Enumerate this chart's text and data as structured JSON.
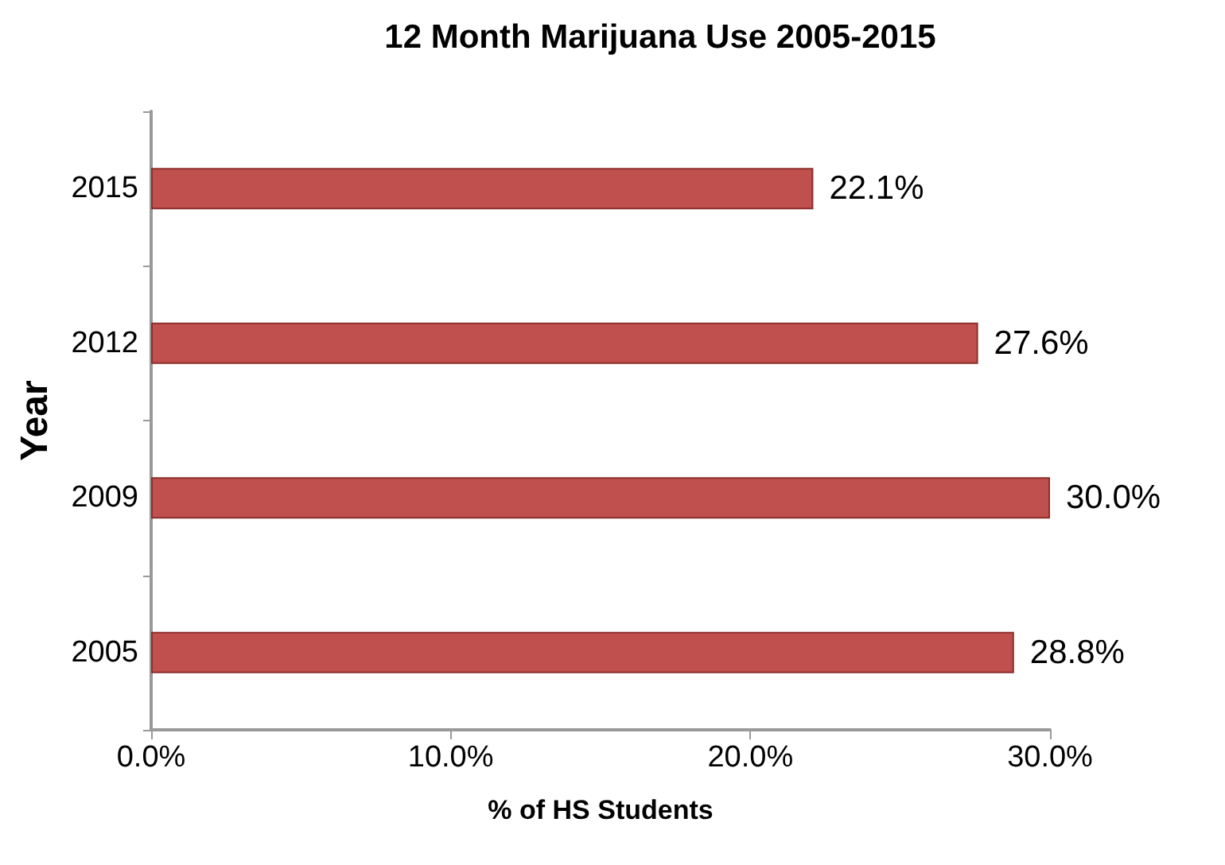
{
  "chart_data": {
    "type": "bar",
    "orientation": "horizontal",
    "title": "12 Month Marijuana Use 2005-2015",
    "xlabel": "% of HS Students",
    "ylabel": "Year",
    "categories": [
      "2015",
      "2012",
      "2009",
      "2005"
    ],
    "values": [
      22.1,
      27.6,
      30.0,
      28.8
    ],
    "value_labels": [
      "22.1%",
      "27.6%",
      "30.0%",
      "28.8%"
    ],
    "color": "#c0504d",
    "xlim": [
      0,
      30
    ],
    "xticks": [
      {
        "value": 0,
        "label": "0.0%"
      },
      {
        "value": 10,
        "label": "10.0%"
      },
      {
        "value": 20,
        "label": "20.0%"
      },
      {
        "value": 30,
        "label": "30.0%"
      }
    ],
    "grid": false
  }
}
